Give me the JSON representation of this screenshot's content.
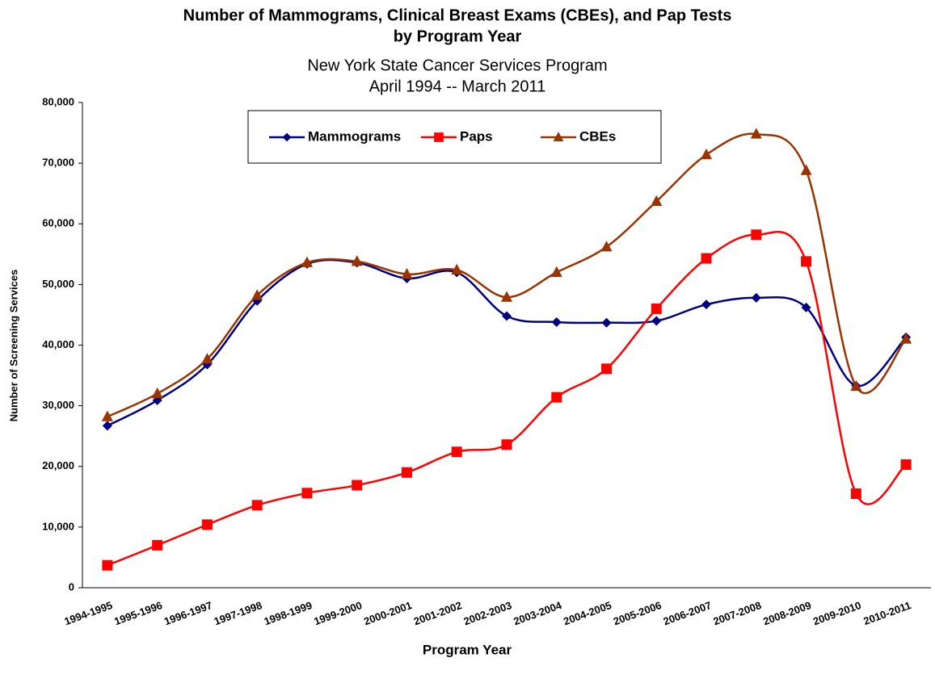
{
  "chart_data": {
    "type": "line",
    "title": [
      "Number of Mammograms, Clinical Breast Exams (CBEs), and Pap Tests",
      "by Program Year"
    ],
    "subtitle": [
      "New York State Cancer Services Program",
      "April 1994 -- March 2011"
    ],
    "x_label": "Program Year",
    "y_label": "Number of Screening Services",
    "categories": [
      "1994-1995",
      "1995-1996",
      "1996-1997",
      "1997-1998",
      "1998-1999",
      "1999-2000",
      "2000-2001",
      "2001-2002",
      "2002-2003",
      "2003-2004",
      "2004-2005",
      "2005-2006",
      "2006-2007",
      "2007-2008",
      "2008-2009",
      "2009-2010",
      "2010-2011"
    ],
    "series": [
      {
        "name": "Mammograms",
        "color": "#000080",
        "marker": "diamond",
        "values": [
          26700,
          30900,
          36800,
          47300,
          53400,
          53600,
          51000,
          52000,
          44800,
          43800,
          43700,
          44000,
          46700,
          47800,
          46200,
          33300,
          41300
        ]
      },
      {
        "name": "Paps",
        "color": "#ff0000",
        "marker": "square",
        "values": [
          3700,
          7000,
          10400,
          13600,
          15600,
          16900,
          19000,
          22400,
          23600,
          31400,
          36100,
          46000,
          54300,
          58200,
          53800,
          15500,
          20300
        ]
      },
      {
        "name": "CBEs",
        "color": "#993300",
        "marker": "triangle",
        "values": [
          28200,
          32000,
          37700,
          48200,
          53600,
          53800,
          51700,
          52400,
          47900,
          52000,
          56200,
          63700,
          71400,
          74800,
          68800,
          33200,
          41000
        ]
      }
    ],
    "smooth": true,
    "ylim": [
      0,
      80000
    ],
    "yticks": [
      0,
      {
        "value": 10000,
        "label": "10,000"
      },
      {
        "value": 20000,
        "label": "20,000"
      },
      {
        "value": 30000,
        "label": "30,000"
      },
      {
        "value": 40000,
        "label": "40,000"
      },
      {
        "value": 50000,
        "label": "50,000"
      },
      {
        "value": 60000,
        "label": "60,000"
      },
      {
        "value": 70000,
        "label": "70,000"
      },
      {
        "value": 80000,
        "label": "80,000"
      }
    ],
    "grid": false,
    "legend": "top"
  }
}
